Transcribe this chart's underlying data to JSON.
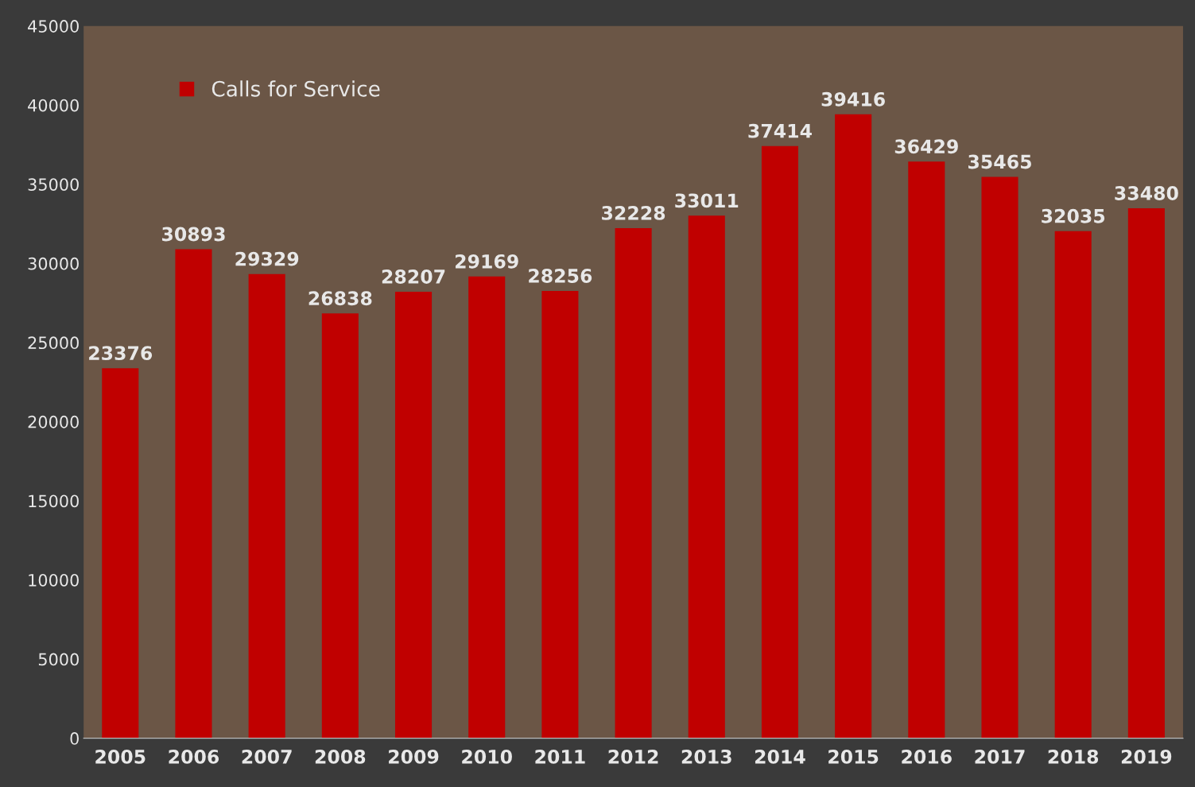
{
  "chart_data": {
    "type": "bar",
    "categories": [
      "2005",
      "2006",
      "2007",
      "2008",
      "2009",
      "2010",
      "2011",
      "2012",
      "2013",
      "2014",
      "2015",
      "2016",
      "2017",
      "2018",
      "2019"
    ],
    "series": [
      {
        "name": "Calls for Service",
        "color": "#c00000",
        "values": [
          23376,
          30893,
          29329,
          26838,
          28207,
          29169,
          28256,
          32228,
          33011,
          37414,
          39416,
          36429,
          35465,
          32035,
          33480
        ]
      }
    ],
    "ylim": [
      0,
      45000
    ],
    "yticks": [
      0,
      5000,
      10000,
      15000,
      20000,
      25000,
      30000,
      35000,
      40000,
      45000
    ],
    "data_labels": true,
    "grid": false,
    "legend": "top left"
  }
}
